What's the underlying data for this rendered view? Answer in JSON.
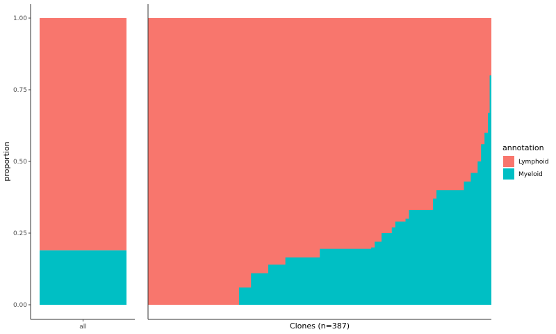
{
  "chart_data": {
    "type": "bar",
    "ylabel": "proportion",
    "ylim": [
      0,
      1
    ],
    "yticks": [
      "0.00",
      "0.25",
      "0.50",
      "0.75",
      "1.00"
    ],
    "ytick_values": [
      0,
      0.25,
      0.5,
      0.75,
      1.0
    ],
    "panels": [
      {
        "xlabel": "all",
        "categories": [
          "all"
        ],
        "stack": {
          "Lymphoid": [
            0.81
          ],
          "Myeloid": [
            0.19
          ]
        }
      },
      {
        "xlabel": "Clones (n=387)",
        "n_clones": 387,
        "myeloid_profile": [
          [
            0.0,
            0.0
          ],
          [
            0.265,
            0.06
          ],
          [
            0.3,
            0.11
          ],
          [
            0.35,
            0.14
          ],
          [
            0.4,
            0.165
          ],
          [
            0.5,
            0.195
          ],
          [
            0.65,
            0.2
          ],
          [
            0.66,
            0.22
          ],
          [
            0.68,
            0.25
          ],
          [
            0.71,
            0.27
          ],
          [
            0.72,
            0.29
          ],
          [
            0.75,
            0.3
          ],
          [
            0.76,
            0.33
          ],
          [
            0.83,
            0.37
          ],
          [
            0.84,
            0.4
          ],
          [
            0.92,
            0.43
          ],
          [
            0.94,
            0.46
          ],
          [
            0.96,
            0.5
          ],
          [
            0.97,
            0.56
          ],
          [
            0.98,
            0.6
          ],
          [
            0.99,
            0.67
          ],
          [
            0.995,
            0.8
          ],
          [
            1.0,
            1.0
          ]
        ]
      }
    ],
    "legend": {
      "title": "annotation",
      "placement": "right",
      "items": [
        {
          "label": "Lymphoid",
          "color": "#F8766D"
        },
        {
          "label": "Myeloid",
          "color": "#00BFC4"
        }
      ]
    }
  }
}
